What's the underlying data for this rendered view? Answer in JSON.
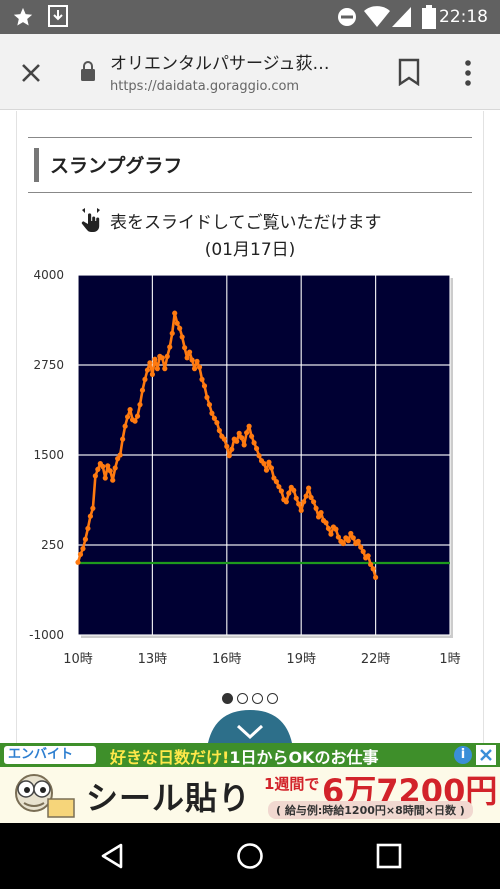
{
  "status_bar": {
    "time": "22:18",
    "icons": [
      "star-icon",
      "download-icon",
      "dnd-icon",
      "wifi-icon",
      "signal-icon",
      "battery-icon"
    ]
  },
  "browser": {
    "page_title": "オリエンタルパサージュ荻…",
    "url": "https://daidata.goraggio.com"
  },
  "section": {
    "title": "スランプグラフ"
  },
  "chart_hint": "表をスライドしてご覧いただけます",
  "chart_date": "(01月17日)",
  "chart_data": {
    "type": "line",
    "title": "",
    "xlabel": "",
    "ylabel": "",
    "x_ticks": [
      "10時",
      "13時",
      "16時",
      "19時",
      "22時",
      "1時"
    ],
    "x_tick_hours": [
      10,
      13,
      16,
      19,
      22,
      25
    ],
    "xlim": [
      10,
      25
    ],
    "y_ticks": [
      4000,
      2750,
      1500,
      250,
      -1000
    ],
    "ylim": [
      -1000,
      4000
    ],
    "background_color": "#000033",
    "grid": true,
    "grid_color": "#ffffff",
    "reference_line": {
      "y": 0,
      "color": "#1e9a1e"
    },
    "series": [
      {
        "color": "#ff7a10",
        "points": [
          [
            10.0,
            10
          ],
          [
            10.1,
            120
          ],
          [
            10.2,
            200
          ],
          [
            10.3,
            330
          ],
          [
            10.4,
            480
          ],
          [
            10.5,
            650
          ],
          [
            10.6,
            760
          ],
          [
            10.7,
            1210
          ],
          [
            10.8,
            1300
          ],
          [
            10.9,
            1380
          ],
          [
            11.0,
            1340
          ],
          [
            11.1,
            1180
          ],
          [
            11.2,
            1350
          ],
          [
            11.3,
            1280
          ],
          [
            11.4,
            1150
          ],
          [
            11.5,
            1320
          ],
          [
            11.6,
            1450
          ],
          [
            11.7,
            1500
          ],
          [
            11.8,
            1720
          ],
          [
            11.9,
            1900
          ],
          [
            12.0,
            2030
          ],
          [
            12.1,
            2130
          ],
          [
            12.2,
            1990
          ],
          [
            12.3,
            1970
          ],
          [
            12.4,
            2040
          ],
          [
            12.5,
            2200
          ],
          [
            12.6,
            2400
          ],
          [
            12.7,
            2550
          ],
          [
            12.8,
            2680
          ],
          [
            12.9,
            2780
          ],
          [
            13.0,
            2620
          ],
          [
            13.1,
            2830
          ],
          [
            13.2,
            2700
          ],
          [
            13.3,
            2870
          ],
          [
            13.4,
            2850
          ],
          [
            13.5,
            2700
          ],
          [
            13.6,
            2870
          ],
          [
            13.7,
            3000
          ],
          [
            13.8,
            3190
          ],
          [
            13.9,
            3470
          ],
          [
            14.0,
            3330
          ],
          [
            14.1,
            3260
          ],
          [
            14.2,
            3140
          ],
          [
            14.3,
            2990
          ],
          [
            14.4,
            2850
          ],
          [
            14.5,
            2930
          ],
          [
            14.6,
            2820
          ],
          [
            14.7,
            2700
          ],
          [
            14.8,
            2800
          ],
          [
            14.9,
            2720
          ],
          [
            15.0,
            2550
          ],
          [
            15.1,
            2460
          ],
          [
            15.2,
            2300
          ],
          [
            15.3,
            2200
          ],
          [
            15.4,
            2080
          ],
          [
            15.5,
            2010
          ],
          [
            15.6,
            1950
          ],
          [
            15.7,
            1840
          ],
          [
            15.8,
            1760
          ],
          [
            15.9,
            1720
          ],
          [
            16.0,
            1620
          ],
          [
            16.1,
            1490
          ],
          [
            16.2,
            1580
          ],
          [
            16.3,
            1720
          ],
          [
            16.4,
            1690
          ],
          [
            16.5,
            1800
          ],
          [
            16.6,
            1740
          ],
          [
            16.7,
            1640
          ],
          [
            16.8,
            1810
          ],
          [
            16.9,
            1900
          ],
          [
            17.0,
            1760
          ],
          [
            17.1,
            1670
          ],
          [
            17.2,
            1590
          ],
          [
            17.3,
            1490
          ],
          [
            17.4,
            1420
          ],
          [
            17.5,
            1380
          ],
          [
            17.6,
            1290
          ],
          [
            17.7,
            1400
          ],
          [
            17.8,
            1320
          ],
          [
            17.9,
            1180
          ],
          [
            18.0,
            1130
          ],
          [
            18.1,
            1060
          ],
          [
            18.2,
            1000
          ],
          [
            18.3,
            880
          ],
          [
            18.4,
            850
          ],
          [
            18.5,
            970
          ],
          [
            18.6,
            1050
          ],
          [
            18.7,
            1010
          ],
          [
            18.8,
            900
          ],
          [
            18.9,
            820
          ],
          [
            19.0,
            730
          ],
          [
            19.1,
            850
          ],
          [
            19.2,
            930
          ],
          [
            19.3,
            1040
          ],
          [
            19.4,
            910
          ],
          [
            19.5,
            850
          ],
          [
            19.6,
            760
          ],
          [
            19.7,
            640
          ],
          [
            19.8,
            700
          ],
          [
            19.9,
            590
          ],
          [
            20.0,
            560
          ],
          [
            20.1,
            480
          ],
          [
            20.2,
            400
          ],
          [
            20.3,
            500
          ],
          [
            20.4,
            470
          ],
          [
            20.5,
            360
          ],
          [
            20.6,
            300
          ],
          [
            20.7,
            270
          ],
          [
            20.8,
            350
          ],
          [
            20.9,
            310
          ],
          [
            21.0,
            410
          ],
          [
            21.1,
            350
          ],
          [
            21.2,
            270
          ],
          [
            21.3,
            300
          ],
          [
            21.4,
            220
          ],
          [
            21.5,
            160
          ],
          [
            21.6,
            70
          ],
          [
            21.7,
            100
          ],
          [
            21.8,
            -20
          ],
          [
            21.9,
            -80
          ],
          [
            22.0,
            -200
          ]
        ]
      }
    ]
  },
  "pager": {
    "count": 4,
    "active": 0
  },
  "ad": {
    "brand": "エンバイト",
    "headline_1": "好きな日数だけ!",
    "headline_2": "1日からOKのお仕事",
    "main_text": "シール貼り",
    "weekly_label": "1週間で",
    "amount": "6万7200円",
    "example": "( 給与例:時給1200円×8時間×日数 )",
    "info_icon": "i"
  }
}
